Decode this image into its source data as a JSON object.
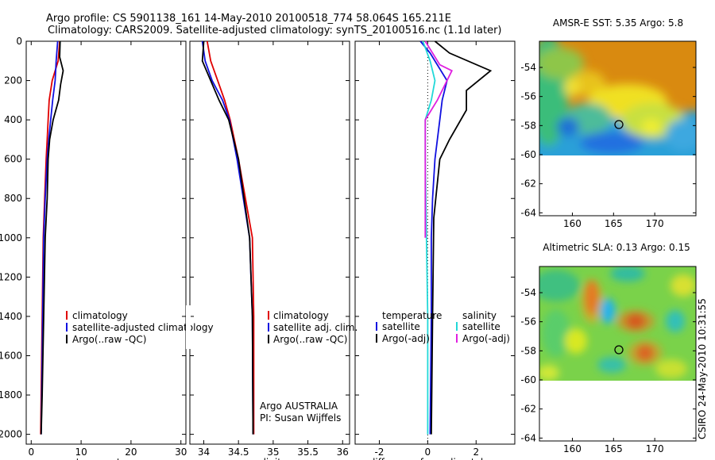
{
  "header": {
    "line1": "Argo profile: CS 5901138_161 14-May-2010 20100518_774 58.064S 165.211E",
    "line2": "Climatology: CARS2009. Satellite-adjusted climatology: synTS_20100516.nc (1.1d later)"
  },
  "side_stamp": "CSIRO 24-May-2010 10:31:55",
  "colors": {
    "climatology": "#e00000",
    "satellite": "#1010e0",
    "argo": "#000000",
    "cyan": "#22d8d8",
    "magenta": "#e020e0"
  },
  "chart_data": [
    {
      "id": "temperature",
      "type": "line",
      "xlabel": "temperature",
      "xlim": [
        -1,
        31
      ],
      "xticks": [
        0,
        10,
        20,
        30
      ],
      "ylim": [
        2050,
        0
      ],
      "yticks": [
        0,
        200,
        400,
        600,
        800,
        1000,
        1200,
        1400,
        1600,
        1800,
        2000
      ],
      "legend": [
        "climatology",
        "satellite-adjusted climatology",
        "Argo(..raw -QC)"
      ],
      "series": [
        {
          "name": "climatology",
          "color": "climatology",
          "x": [
            5.7,
            5.4,
            4.2,
            3.6,
            3.4,
            3.2,
            3.0,
            2.7,
            2.4,
            2.2,
            2.0,
            1.9
          ],
          "y": [
            0,
            100,
            200,
            300,
            400,
            500,
            600,
            800,
            1000,
            1400,
            1800,
            2000
          ]
        },
        {
          "name": "satellite-adjusted climatology",
          "color": "satellite",
          "x": [
            5.3,
            5.0,
            4.8,
            4.3,
            3.9,
            3.5,
            3.2,
            2.8,
            2.5,
            2.3,
            2.1,
            2.0
          ],
          "y": [
            0,
            100,
            200,
            300,
            400,
            500,
            600,
            800,
            1000,
            1400,
            1800,
            2000
          ]
        },
        {
          "name": "Argo(..raw -QC)",
          "color": "argo",
          "x": [
            5.8,
            5.7,
            6.4,
            5.9,
            5.5,
            4.4,
            3.7,
            3.4,
            3.2,
            2.8,
            2.5,
            2.2,
            2.0
          ],
          "y": [
            0,
            80,
            150,
            220,
            300,
            400,
            500,
            600,
            800,
            1000,
            1400,
            1800,
            2000
          ]
        }
      ]
    },
    {
      "id": "salinity",
      "type": "line",
      "xlabel": "salinity",
      "xlim": [
        33.8,
        36.1
      ],
      "xticks": [
        34,
        34.5,
        35,
        35.5,
        36
      ],
      "xticklabels": [
        "34",
        "34.5",
        "35",
        "35.5",
        "36"
      ],
      "ylim": [
        2050,
        0
      ],
      "legend": [
        "climatology",
        "satellite adj. clim.",
        "Argo(..raw -QC)"
      ],
      "annotation": [
        "Argo AUSTRALIA",
        "PI: Susan Wijffels"
      ],
      "series": [
        {
          "name": "climatology",
          "color": "climatology",
          "x": [
            34.05,
            34.1,
            34.2,
            34.3,
            34.38,
            34.5,
            34.6,
            34.7,
            34.72,
            34.72
          ],
          "y": [
            0,
            100,
            200,
            300,
            400,
            600,
            800,
            1000,
            1400,
            2000
          ]
        },
        {
          "name": "satellite adj. clim.",
          "color": "satellite",
          "x": [
            33.98,
            34.02,
            34.12,
            34.27,
            34.37,
            34.48,
            34.57,
            34.66,
            34.7,
            34.71
          ],
          "y": [
            0,
            100,
            200,
            300,
            400,
            600,
            800,
            1000,
            1400,
            2000
          ]
        },
        {
          "name": "Argo(..raw -QC)",
          "color": "argo",
          "x": [
            34.0,
            33.98,
            34.1,
            34.22,
            34.36,
            34.5,
            34.58,
            34.66,
            34.7,
            34.71
          ],
          "y": [
            0,
            100,
            200,
            300,
            400,
            600,
            800,
            1000,
            1400,
            2000
          ]
        }
      ]
    },
    {
      "id": "difference",
      "type": "line",
      "xlabel": "difference from climatology",
      "xlim": [
        -3,
        3.6
      ],
      "xticks": [
        -2,
        0,
        2
      ],
      "ylim": [
        2050,
        0
      ],
      "legend_headers": [
        "temperature",
        "salinity"
      ],
      "legend_temperature": [
        "satellite",
        "Argo(-adj)"
      ],
      "legend_salinity": [
        "satellite",
        "Argo(-adj)"
      ],
      "series": [
        {
          "name": "temperature satellite",
          "color": "satellite",
          "x": [
            -0.3,
            0.1,
            0.8,
            0.6,
            0.5,
            0.3,
            0.2,
            0.15,
            0.15,
            0.1
          ],
          "y": [
            0,
            60,
            200,
            300,
            400,
            600,
            800,
            1000,
            1400,
            2000
          ]
        },
        {
          "name": "temperature Argo(-adj)",
          "color": "argo",
          "x": [
            0.3,
            0.9,
            2.6,
            1.6,
            1.6,
            0.9,
            0.5,
            0.25,
            0.2,
            0.15
          ],
          "y": [
            0,
            60,
            150,
            250,
            350,
            500,
            600,
            900,
            1400,
            2000
          ]
        },
        {
          "name": "salinity satellite",
          "color": "cyan",
          "x": [
            -0.2,
            0.1,
            0.3,
            0.15,
            -0.1,
            -0.1,
            -0.05,
            0.0,
            0.0
          ],
          "y": [
            0,
            100,
            200,
            300,
            400,
            600,
            1000,
            1400,
            2000
          ]
        },
        {
          "name": "salinity Argo(-adj)",
          "color": "magenta",
          "x": [
            -0.1,
            0.5,
            1.0,
            0.4,
            -0.1,
            -0.1,
            -0.1
          ],
          "y": [
            0,
            120,
            150,
            300,
            400,
            600,
            1000
          ]
        }
      ]
    }
  ],
  "maps": [
    {
      "id": "sst",
      "title": "AMSR-E SST: 5.35 Argo: 5.8",
      "xticks": [
        160,
        165,
        170
      ],
      "yticks": [
        -54,
        -56,
        -58,
        -60,
        -62,
        -64
      ],
      "xlim": [
        156,
        175
      ],
      "ylim": [
        -64.2,
        -52.2
      ]
    },
    {
      "id": "sla",
      "title": "Altimetric SLA: 0.13 Argo: 0.15",
      "xticks": [
        160,
        165,
        170
      ],
      "yticks": [
        -54,
        -56,
        -58,
        -60,
        -62,
        -64
      ],
      "xlim": [
        156,
        175
      ],
      "ylim": [
        -64.2,
        -52.2
      ]
    }
  ],
  "float_position": {
    "lon": 165.211,
    "lat": -58.064
  }
}
